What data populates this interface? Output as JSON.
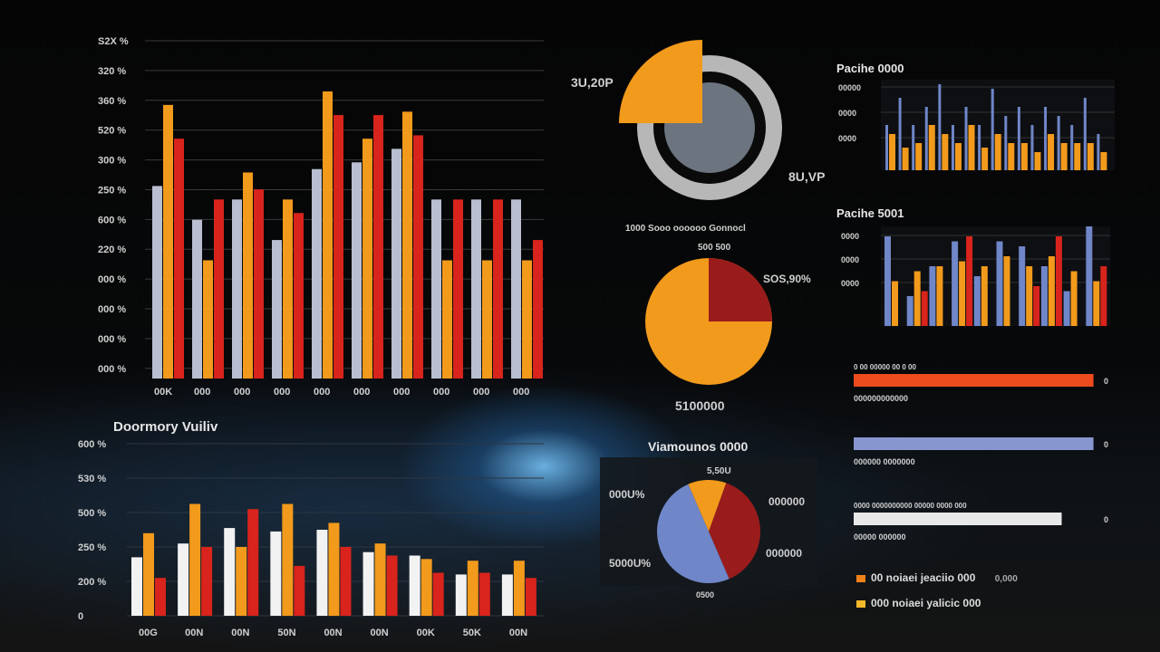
{
  "colors": {
    "gray": "#b9bfd0",
    "orange": "#f29a1c",
    "red": "#d8241c",
    "white": "#f2f2f2",
    "blue": "#6f86c8",
    "darkred": "#9a1b1b",
    "dark_gray": "#6c7480"
  },
  "chart_data": [
    {
      "id": "main_bar",
      "type": "bar",
      "y_tick_labels": [
        "S2X %",
        "320 %",
        "360 %",
        "520 %",
        "300 %",
        "250 %",
        "600 %",
        "220 %",
        "000 %",
        "000 %",
        "000 %",
        "000 %"
      ],
      "categories": [
        "00K",
        "000",
        "000",
        "000",
        "000",
        "000",
        "000",
        "000",
        "000",
        "000"
      ],
      "series": [
        {
          "values": [
            0.57,
            0.47,
            0.53,
            0.41,
            0.62,
            0.64,
            0.68,
            0.53,
            0.53,
            0.53
          ]
        },
        {
          "values": [
            0.81,
            0.35,
            0.61,
            0.53,
            0.85,
            0.71,
            0.79,
            0.35,
            0.35,
            0.35
          ]
        },
        {
          "values": [
            0.71,
            0.53,
            0.56,
            0.49,
            0.78,
            0.78,
            0.72,
            0.53,
            0.53,
            0.41
          ]
        }
      ],
      "ylim": [
        0,
        1
      ]
    },
    {
      "id": "bottom_bar",
      "type": "bar",
      "title": "Doormory Vuiliv",
      "y_tick_labels": [
        "600 %",
        "530 %",
        "500 %",
        "250 %",
        "200 %",
        "0"
      ],
      "categories": [
        "00G",
        "00N",
        "00N",
        "50N",
        "00N",
        "00N",
        "00K",
        "50K",
        "00N"
      ],
      "series": [
        {
          "values": [
            0.34,
            0.42,
            0.51,
            0.49,
            0.5,
            0.37,
            0.35,
            0.24,
            0.24
          ]
        },
        {
          "values": [
            0.48,
            0.65,
            0.4,
            0.65,
            0.54,
            0.42,
            0.33,
            0.32,
            0.32
          ]
        },
        {
          "values": [
            0.22,
            0.4,
            0.62,
            0.29,
            0.4,
            0.35,
            0.25,
            0.25,
            0.22
          ]
        }
      ],
      "ylim": [
        0,
        1
      ]
    },
    {
      "id": "donut",
      "type": "pie",
      "label_left": "3U,20P",
      "label_right": "8U,VP",
      "legend_text": "1000 Sooo oooooo Gonnocl",
      "values": [
        25,
        75
      ]
    },
    {
      "id": "pie_orange",
      "type": "pie",
      "label_top": "500 500",
      "label_right": "SOS,90%",
      "label_bottom": "5100000",
      "values": [
        25,
        75
      ]
    },
    {
      "id": "pie_blue",
      "type": "pie",
      "title": "Viamounos 0000",
      "label_top": "5,50U",
      "label_left": "000U%",
      "label_right": "000000",
      "label_bottom_left": "5000U%",
      "label_bottom_right": "000000",
      "label_bottom": "0500",
      "values": [
        12,
        38,
        50
      ]
    },
    {
      "id": "small_bar_1",
      "type": "bar",
      "title": "Pacihe 0000",
      "y_tick_labels": [
        "00000",
        "0000",
        "0000"
      ],
      "series": [
        {
          "values": [
            0.5,
            0.8,
            0.5,
            0.7,
            0.95,
            0.5,
            0.7,
            0.5,
            0.9,
            0.6,
            0.7,
            0.5,
            0.7,
            0.6,
            0.5,
            0.8,
            0.4
          ]
        },
        {
          "values": [
            0.4,
            0.25,
            0.3,
            0.5,
            0.4,
            0.3,
            0.5,
            0.25,
            0.4,
            0.3,
            0.3,
            0.2,
            0.4,
            0.3,
            0.3,
            0.3,
            0.2
          ]
        }
      ],
      "ylim": [
        0,
        1
      ]
    },
    {
      "id": "small_bar_2",
      "type": "bar",
      "title": "Pacihe 5001",
      "y_tick_labels": [
        "0000",
        "0000",
        "0000"
      ],
      "series": [
        {
          "values": [
            0.9,
            0.3,
            0.6,
            0.85,
            0.5,
            0.85,
            0.8,
            0.6,
            0.35,
            1.0
          ]
        },
        {
          "values": [
            0.45,
            0.55,
            0.6,
            0.65,
            0.6,
            0.7,
            0.6,
            0.7,
            0.55,
            0.45
          ]
        },
        {
          "values": [
            0.0,
            0.35,
            0.0,
            0.9,
            0.0,
            0.0,
            0.4,
            0.9,
            0.0,
            0.6
          ]
        }
      ],
      "ylim": [
        0,
        1
      ]
    },
    {
      "id": "progress_bars",
      "type": "bar",
      "bars": [
        {
          "value": 0.98,
          "color": "#ee4b1e",
          "label_top": "0 00 00000 00 0 00",
          "label_bottom": "000000000000"
        },
        {
          "value": 0.98,
          "color": "#8896d0",
          "label_top": "",
          "label_bottom": "000000 0000000"
        },
        {
          "value": 0.85,
          "color": "#e8e8e8",
          "label_top": "0000 0000000000 00000 0000 000",
          "label_bottom": "00000 000000"
        }
      ],
      "side_labels": [
        "0",
        "0",
        "0"
      ]
    }
  ],
  "legend": [
    {
      "label": "00  noiaei jeaciio 000",
      "value": "0,000"
    },
    {
      "label": "000  noiaei yalicic 000",
      "value": ""
    }
  ]
}
